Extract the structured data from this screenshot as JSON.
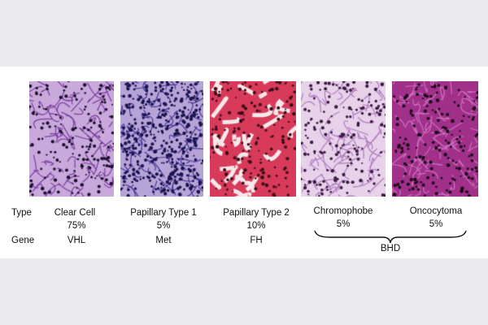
{
  "row_labels": {
    "type": "Type",
    "gene": "Gene"
  },
  "panels": [
    {
      "type": "Clear Cell",
      "percent": "75%",
      "gene": "VHL",
      "colors": [
        "#c9a8dc",
        "#7a3f9e",
        "#1c1030"
      ]
    },
    {
      "type": "Papillary Type 1",
      "percent": "5%",
      "gene": "Met",
      "colors": [
        "#b7a4d6",
        "#4a3a9a",
        "#1a1450"
      ]
    },
    {
      "type": "Papillary Type 2",
      "percent": "10%",
      "gene": "FH",
      "colors": [
        "#d83a5a",
        "#f6e8ea",
        "#3a0a18"
      ]
    },
    {
      "type": "Chromophobe",
      "percent": "5%",
      "gene": "",
      "colors": [
        "#e8d2ea",
        "#b07ac0",
        "#3a1a40"
      ]
    },
    {
      "type": "Oncocytoma",
      "percent": "5%",
      "gene": "",
      "colors": [
        "#a0308a",
        "#d070c0",
        "#1a0818"
      ]
    }
  ],
  "shared_gene": "BHD"
}
